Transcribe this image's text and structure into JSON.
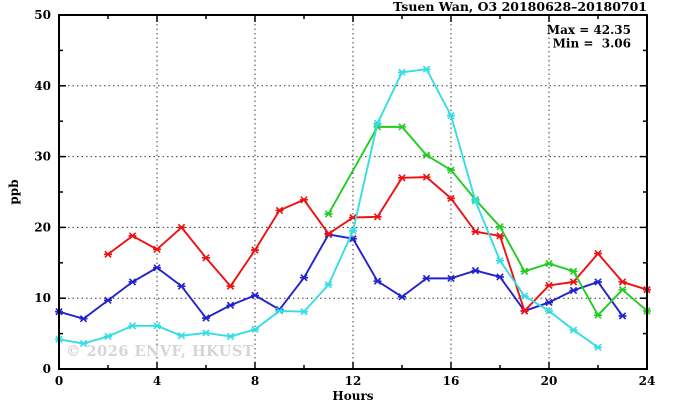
{
  "chart_data": {
    "type": "line",
    "title": "Tsuen Wan, O3 20180628–20180701",
    "xlabel": "Hours",
    "ylabel": "ppb",
    "xlim": [
      0,
      24
    ],
    "ylim": [
      0,
      50
    ],
    "x_major_ticks": [
      0,
      4,
      8,
      12,
      16,
      20,
      24
    ],
    "x_minor_step": 2,
    "y_major_ticks": [
      0,
      10,
      20,
      30,
      40,
      50
    ],
    "y_minor_step": 5,
    "grid": "dotted-at-major-ticks",
    "legend": "none",
    "annotations": {
      "max_label": "Max = 42.35",
      "min_label": "Min =  3.06"
    },
    "watermark": "© 2026 ENVF, HKUST",
    "series": [
      {
        "name": "blue",
        "color": "#2323cc",
        "marker": "x",
        "points": [
          [
            0,
            8.1
          ],
          [
            1,
            7.1
          ],
          [
            2,
            9.7
          ],
          [
            3,
            12.3
          ],
          [
            4,
            14.3
          ],
          [
            5,
            11.7
          ],
          [
            6,
            7.2
          ],
          [
            7,
            9.0
          ],
          [
            8,
            10.4
          ],
          [
            9,
            8.4
          ],
          [
            10,
            12.9
          ],
          [
            11,
            19.0
          ],
          [
            12,
            18.4
          ],
          [
            13,
            12.4
          ],
          [
            14,
            10.2
          ],
          [
            15,
            12.8
          ],
          [
            16,
            12.8
          ],
          [
            17,
            13.9
          ],
          [
            18,
            13.0
          ],
          [
            19,
            8.2
          ],
          [
            20,
            9.4
          ],
          [
            21,
            11.1
          ],
          [
            22,
            12.3
          ],
          [
            23,
            7.5
          ]
        ]
      },
      {
        "name": "red",
        "color": "#ee1111",
        "marker": "x",
        "points": [
          [
            2,
            16.2
          ],
          [
            3,
            18.8
          ],
          [
            4,
            16.9
          ],
          [
            5,
            20.0
          ],
          [
            6,
            15.7
          ],
          [
            7,
            11.7
          ],
          [
            8,
            16.8
          ],
          [
            9,
            22.4
          ],
          [
            10,
            23.9
          ],
          [
            11,
            19.1
          ],
          [
            12,
            21.4
          ],
          [
            13,
            21.5
          ],
          [
            14,
            27.0
          ],
          [
            15,
            27.1
          ],
          [
            16,
            24.1
          ],
          [
            17,
            19.4
          ],
          [
            18,
            18.8
          ],
          [
            19,
            8.2
          ],
          [
            20,
            11.8
          ],
          [
            21,
            12.3
          ],
          [
            22,
            16.3
          ],
          [
            23,
            12.3
          ],
          [
            24,
            11.2
          ]
        ]
      },
      {
        "name": "green",
        "color": "#22cc22",
        "marker": "x",
        "points": [
          [
            11,
            21.9
          ],
          [
            13,
            34.2
          ],
          [
            14,
            34.2
          ],
          [
            15,
            30.2
          ],
          [
            16,
            28.1
          ],
          [
            17,
            23.9
          ],
          [
            18,
            20.1
          ],
          [
            19,
            13.8
          ],
          [
            20,
            14.9
          ],
          [
            21,
            13.8
          ],
          [
            22,
            7.6
          ],
          [
            23,
            11.2
          ],
          [
            24,
            8.2
          ]
        ]
      },
      {
        "name": "cyan",
        "color": "#35dde4",
        "marker": "x",
        "points": [
          [
            0,
            4.2
          ],
          [
            1,
            3.6
          ],
          [
            2,
            4.6
          ],
          [
            3,
            6.1
          ],
          [
            4,
            6.1
          ],
          [
            5,
            4.7
          ],
          [
            6,
            5.1
          ],
          [
            7,
            4.6
          ],
          [
            8,
            5.6
          ],
          [
            9,
            8.2
          ],
          [
            10,
            8.1
          ],
          [
            11,
            11.9
          ],
          [
            12,
            19.5
          ],
          [
            13,
            34.7
          ],
          [
            14,
            41.9
          ],
          [
            15,
            42.35
          ],
          [
            16,
            35.8
          ],
          [
            17,
            23.7
          ],
          [
            18,
            15.3
          ],
          [
            19,
            10.3
          ],
          [
            20,
            8.2
          ],
          [
            21,
            5.5
          ],
          [
            22,
            3.06
          ]
        ]
      }
    ]
  }
}
